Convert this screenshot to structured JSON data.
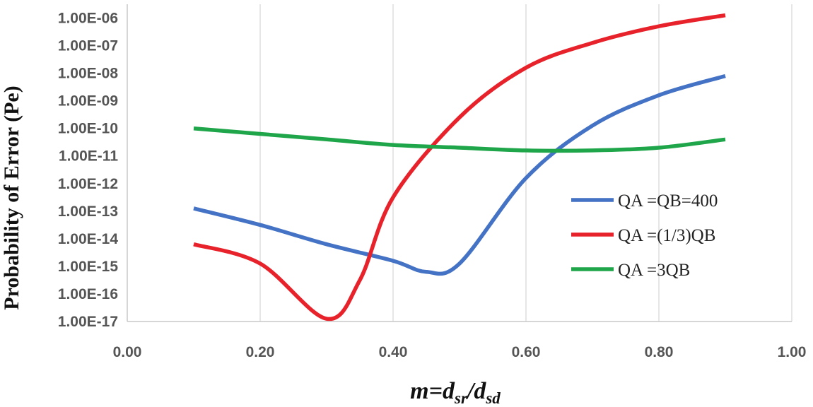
{
  "chart_data": {
    "type": "line",
    "title": "",
    "xlabel": {
      "prefix": "m=d",
      "sub1": "sr",
      "mid": "/d",
      "sub2": "sd"
    },
    "ylabel": "Probability of Error (Pe)",
    "xlim": [
      0.0,
      1.0
    ],
    "ylim_log10": [
      -17,
      -5.5
    ],
    "x_ticks": [
      "0.00",
      "0.20",
      "0.40",
      "0.60",
      "0.80",
      "1.00"
    ],
    "x_tick_values": [
      0.0,
      0.2,
      0.4,
      0.6,
      0.8,
      1.0
    ],
    "y_ticks": [
      "1.00E-06",
      "1.00E-07",
      "1.00E-08",
      "1.00E-09",
      "1.00E-10",
      "1.00E-11",
      "1.00E-12",
      "1.00E-13",
      "1.00E-14",
      "1.00E-15",
      "1.00E-16",
      "1.00E-17"
    ],
    "y_tick_exponents": [
      -6,
      -7,
      -8,
      -9,
      -10,
      -11,
      -12,
      -13,
      -14,
      -15,
      -16,
      -17
    ],
    "grid": true,
    "legend_position": "right",
    "series": [
      {
        "name": "QA =QB=400",
        "color": "#4472C4",
        "x": [
          0.1,
          0.2,
          0.3,
          0.4,
          0.45,
          0.5,
          0.6,
          0.7,
          0.8,
          0.9
        ],
        "log10_y": [
          -12.9,
          -13.5,
          -14.2,
          -14.8,
          -15.2,
          -14.9,
          -11.8,
          -9.9,
          -8.8,
          -8.1
        ]
      },
      {
        "name": "QA =(1/3)QB",
        "color": "#E8222A",
        "x": [
          0.1,
          0.2,
          0.3,
          0.35,
          0.4,
          0.5,
          0.6,
          0.7,
          0.8,
          0.9
        ],
        "log10_y": [
          -14.2,
          -14.9,
          -16.9,
          -15.5,
          -12.5,
          -9.6,
          -7.8,
          -6.9,
          -6.3,
          -5.9
        ]
      },
      {
        "name": "QA =3QB",
        "color": "#1FA64A",
        "x": [
          0.1,
          0.2,
          0.3,
          0.4,
          0.5,
          0.6,
          0.7,
          0.8,
          0.9
        ],
        "log10_y": [
          -10.0,
          -10.2,
          -10.4,
          -10.6,
          -10.7,
          -10.8,
          -10.8,
          -10.7,
          -10.4
        ]
      }
    ]
  }
}
